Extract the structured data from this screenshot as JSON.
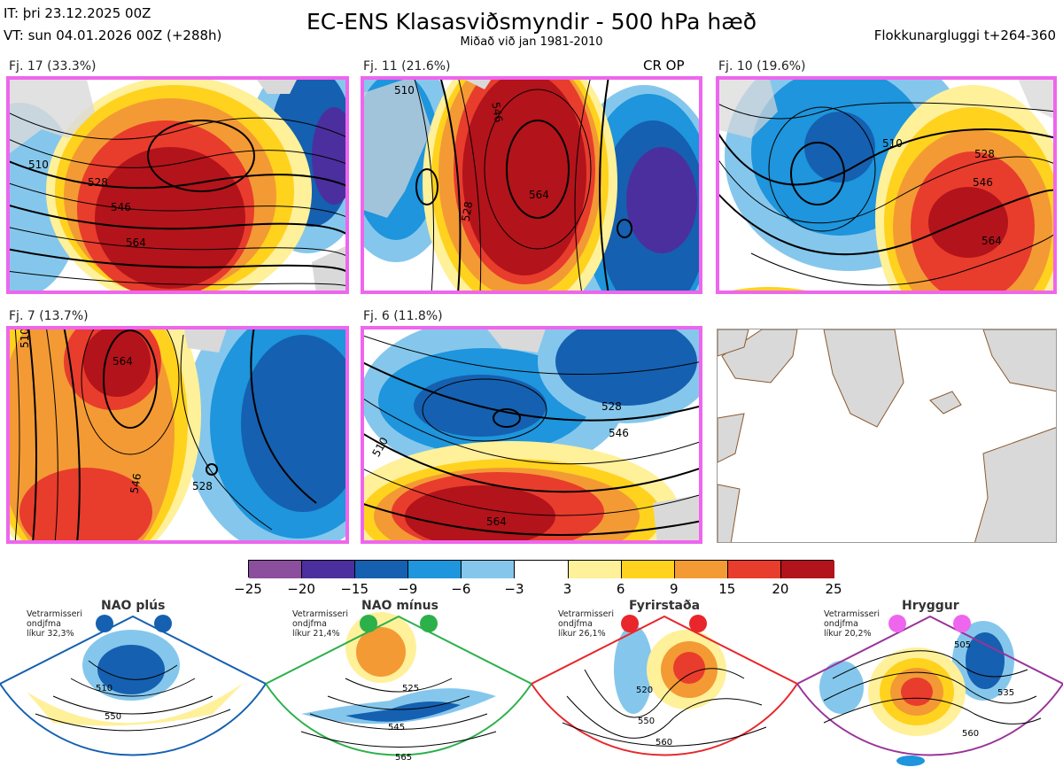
{
  "header": {
    "it_line": "IT: þri 23.12.2025 00Z",
    "vt_line": "VT: sun 04.01.2026 00Z  (+288h)",
    "title": "EC-ENS Klasasviðsmyndir - 500 hPa hæð",
    "subtitle": "Miðað við jan 1981-2010",
    "window": "Flokkunargluggi t+264-360"
  },
  "panels": [
    {
      "label": "Fj. 17 (33.3%)",
      "c1": "510",
      "c2": "528",
      "c3": "546",
      "c4": "564"
    },
    {
      "label": "Fj. 11 (21.6%)",
      "badge": "CR OP",
      "c1": "510",
      "c2": "528",
      "c3": "546",
      "c4": "564"
    },
    {
      "label": "Fj. 10 (19.6%)",
      "c1": "510",
      "c2": "528",
      "c3": "546",
      "c4": "564"
    },
    {
      "label": "Fj. 7 (13.7%)",
      "c1": "510",
      "c2": "528",
      "c3": "546",
      "c4": "564"
    },
    {
      "label": "Fj. 6 (11.8%)",
      "c1": "510",
      "c2": "528",
      "c3": "546",
      "c4": "564"
    }
  ],
  "colors": {
    "frame": "#ee66ee",
    "land": "#d9d9d9",
    "coast": "#8a5a30",
    "scale": [
      "#8b4f9e",
      "#4b2f9e",
      "#1560b0",
      "#1e95dc",
      "#85c7ec",
      "#ffffff",
      "#fff09a",
      "#ffd21e",
      "#f39a34",
      "#e83c2d",
      "#b3131a"
    ]
  },
  "chart_data": {
    "type": "heatmap",
    "title": "EC-ENS Klasasviðsmyndir - 500 hPa hæð",
    "colorbar": {
      "bounds": [
        -25,
        -20,
        -15,
        -9,
        -6,
        -3,
        3,
        6,
        9,
        15,
        20,
        25
      ],
      "tick_labels": [
        "−25",
        "−20",
        "−15",
        "−9",
        "−6",
        "−3",
        "3",
        "6",
        "9",
        "15",
        "20",
        "25"
      ]
    },
    "clusters": [
      {
        "name": "Fj. 17",
        "probability_pct": 33.3
      },
      {
        "name": "Fj. 11",
        "probability_pct": 21.6
      },
      {
        "name": "Fj. 10",
        "probability_pct": 19.6
      },
      {
        "name": "Fj. 7",
        "probability_pct": 13.7
      },
      {
        "name": "Fj. 6",
        "probability_pct": 11.8
      }
    ],
    "contour_levels_dam": [
      510,
      528,
      546,
      564
    ]
  },
  "regimes": [
    {
      "name": "NAO plús",
      "prob_line1": "Vetrarmisseri",
      "prob_line2": "ondjfma",
      "prob_line3": "líkur 32,3%",
      "color": "#1560b0",
      "l1": "510",
      "l2": "550"
    },
    {
      "name": "NAO mínus",
      "prob_line1": "Vetrarmisseri",
      "prob_line2": "ondjfma",
      "prob_line3": "líkur 21,4%",
      "color": "#2bb04a",
      "l1": "525",
      "l2": "545",
      "l3": "565"
    },
    {
      "name": "Fyrirstaða",
      "prob_line1": "Vetrarmisseri",
      "prob_line2": "ondjfma",
      "prob_line3": "líkur 26,1%",
      "color": "#e8262b",
      "l1": "520",
      "l2": "550",
      "l3": "560"
    },
    {
      "name": "Hryggur",
      "prob_line1": "Vetrarmisseri",
      "prob_line2": "ondjfma",
      "prob_line3": "líkur 20,2%",
      "color": "#ee66ee",
      "l1": "505",
      "l2": "535",
      "l3": "560"
    }
  ]
}
